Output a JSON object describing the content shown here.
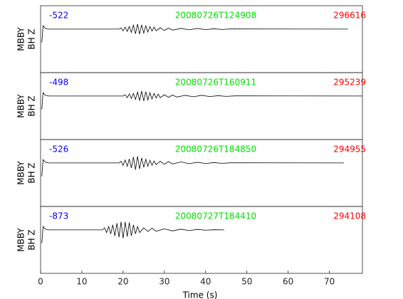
{
  "chart_data": [
    {
      "type": "line",
      "ylabel": [
        "MBBY",
        "BH Z"
      ],
      "annotations": {
        "left": "-522",
        "center": "20080726T124908",
        "right": "296616"
      },
      "xlim": [
        0,
        78
      ],
      "ylim": [
        -1.3,
        0.7
      ],
      "color": "#000000",
      "x": [
        0.3,
        0.6,
        1.2,
        2,
        19,
        19.5,
        20,
        20.5,
        21,
        21.5,
        22,
        22.5,
        23,
        23.5,
        24,
        24.5,
        25,
        25.5,
        26,
        26.5,
        27,
        27.5,
        28,
        29,
        30,
        31,
        32,
        34,
        36,
        38,
        40,
        42,
        44,
        46,
        74.5
      ],
      "values": [
        -0.4,
        0.1,
        0.02,
        0,
        0,
        0.04,
        -0.05,
        0.06,
        -0.07,
        0.08,
        -0.1,
        0.12,
        -0.14,
        0.15,
        -0.15,
        0.13,
        -0.12,
        0.1,
        -0.09,
        0.08,
        -0.06,
        0.06,
        -0.05,
        0.04,
        -0.04,
        0.03,
        -0.03,
        0.02,
        -0.02,
        0.02,
        -0.015,
        0.01,
        -0.01,
        0.005,
        0
      ]
    },
    {
      "type": "line",
      "ylabel": [
        "MBBY",
        "BH Z"
      ],
      "annotations": {
        "left": "-498",
        "center": "20080726T160911",
        "right": "295239"
      },
      "xlim": [
        0,
        78
      ],
      "ylim": [
        -1.3,
        0.7
      ],
      "color": "#000000",
      "x": [
        0.3,
        0.6,
        1.2,
        2,
        20,
        20.5,
        21,
        21.5,
        22,
        22.5,
        23,
        23.5,
        24,
        24.5,
        25,
        25.5,
        26,
        26.5,
        27,
        27.5,
        28,
        28.5,
        29,
        30,
        31,
        32,
        33,
        35,
        37,
        39,
        41,
        43,
        45,
        47,
        78
      ],
      "values": [
        -0.4,
        0.1,
        0.02,
        0,
        0,
        0.04,
        -0.05,
        0.06,
        -0.07,
        0.08,
        -0.1,
        0.12,
        -0.14,
        0.15,
        -0.15,
        0.13,
        -0.12,
        0.1,
        -0.09,
        0.08,
        -0.06,
        0.06,
        -0.05,
        0.04,
        -0.04,
        0.03,
        -0.03,
        0.02,
        -0.02,
        0.02,
        -0.015,
        0.01,
        -0.01,
        0.005,
        0
      ]
    },
    {
      "type": "line",
      "ylabel": [
        "MBBY",
        "BH Z"
      ],
      "annotations": {
        "left": "-526",
        "center": "20080726T184850",
        "right": "294955"
      },
      "xlim": [
        0,
        78
      ],
      "ylim": [
        -1.3,
        0.7
      ],
      "color": "#000000",
      "x": [
        0.3,
        0.6,
        1.2,
        2,
        19,
        19.5,
        20,
        20.5,
        21,
        21.5,
        22,
        22.5,
        23,
        23.5,
        24,
        24.5,
        25,
        25.5,
        26,
        26.5,
        27,
        27.5,
        28,
        29,
        30,
        31,
        32,
        34,
        36,
        38,
        40,
        42,
        44,
        46,
        73.5
      ],
      "values": [
        -0.4,
        0.1,
        0.02,
        0,
        0,
        0.05,
        -0.07,
        0.09,
        -0.1,
        0.12,
        -0.15,
        0.18,
        -0.2,
        0.2,
        -0.18,
        0.15,
        -0.13,
        0.11,
        -0.1,
        0.08,
        -0.07,
        0.06,
        -0.05,
        0.05,
        -0.04,
        0.04,
        -0.03,
        0.03,
        -0.02,
        0.02,
        -0.015,
        0.01,
        -0.01,
        0.005,
        0
      ]
    },
    {
      "type": "line",
      "ylabel": [
        "MBBY",
        "BH Z"
      ],
      "annotations": {
        "left": "-873",
        "center": "20080727T184410",
        "right": "294108"
      },
      "xlim": [
        0,
        78
      ],
      "ylim": [
        -1.3,
        0.7
      ],
      "color": "#000000",
      "x": [
        0.3,
        0.6,
        1.2,
        2,
        15,
        15.5,
        16,
        16.5,
        17,
        17.5,
        18,
        18.5,
        19,
        19.5,
        20,
        20.5,
        21,
        21.5,
        22,
        22.5,
        23,
        23.5,
        24,
        25,
        26,
        27,
        28,
        30,
        32,
        34,
        36,
        38,
        40,
        42,
        44.5
      ],
      "values": [
        -0.4,
        0.1,
        0.02,
        0,
        0,
        0.06,
        -0.08,
        0.1,
        -0.12,
        0.15,
        -0.18,
        0.2,
        -0.22,
        0.24,
        -0.25,
        0.24,
        -0.2,
        0.22,
        -0.18,
        0.15,
        -0.12,
        0.1,
        -0.08,
        0.06,
        -0.05,
        0.05,
        -0.04,
        0.03,
        -0.03,
        0.02,
        -0.02,
        0.015,
        -0.01,
        0.005,
        0
      ],
      "xticks": [
        0,
        10,
        20,
        30,
        40,
        50,
        60,
        70
      ],
      "xlabel": "Time (s)"
    }
  ]
}
